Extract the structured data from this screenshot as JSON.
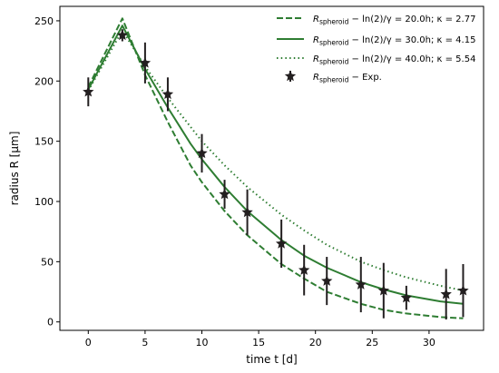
{
  "chart_data": {
    "type": "line",
    "xlabel": "time t [d]",
    "ylabel": "radius R [µm]",
    "xlim": [
      -2.5,
      34.8
    ],
    "ylim": [
      -7,
      262
    ],
    "xticks": [
      0,
      5,
      10,
      15,
      20,
      25,
      30
    ],
    "yticks": [
      0,
      50,
      100,
      150,
      200,
      250
    ],
    "grid": false,
    "legend_position": "top-right",
    "colors": {
      "model": "#2e7d32",
      "experiment": "#231f20"
    },
    "series": [
      {
        "label_math": "R",
        "label_sub": "spheroid",
        "label_rest": " − ln(2)/γ = 20.0h; κ = 2.77",
        "style": "dashed",
        "x": [
          0,
          3,
          5,
          7,
          9,
          10,
          12,
          14,
          17,
          19,
          21,
          24,
          26,
          28,
          31,
          33
        ],
        "y": [
          195,
          252,
          205,
          166,
          130,
          116,
          92,
          72,
          48,
          36,
          25,
          15,
          10,
          7,
          4,
          3
        ]
      },
      {
        "label_math": "R",
        "label_sub": "spheroid",
        "label_rest": " − ln(2)/γ = 30.0h; κ = 4.15",
        "style": "solid",
        "x": [
          0,
          3,
          5,
          7,
          9,
          10,
          12,
          14,
          17,
          19,
          21,
          24,
          26,
          28,
          31,
          33
        ],
        "y": [
          193,
          246,
          210,
          178,
          148,
          135,
          112,
          92,
          68,
          55,
          45,
          33,
          27,
          22,
          17,
          15
        ]
      },
      {
        "label_math": "R",
        "label_sub": "spheroid",
        "label_rest": " − ln(2)/γ = 40.0h; κ = 5.54",
        "style": "dotted",
        "x": [
          0,
          3,
          5,
          7,
          9,
          10,
          12,
          14,
          17,
          19,
          21,
          24,
          26,
          28,
          31,
          33
        ],
        "y": [
          192,
          242,
          212,
          186,
          162,
          150,
          130,
          112,
          89,
          76,
          64,
          50,
          43,
          37,
          30,
          26
        ]
      },
      {
        "label_math": "R",
        "label_sub": "spheroid",
        "label_rest": " − Exp.",
        "style": "markers",
        "x": [
          0,
          3,
          5,
          7,
          10,
          12,
          14,
          17,
          19,
          21,
          24,
          26,
          28,
          31.5,
          33
        ],
        "y": [
          191,
          238,
          215,
          189,
          140,
          106,
          91,
          65,
          43,
          34,
          31,
          26,
          20,
          23,
          26
        ],
        "err": [
          12,
          5,
          17,
          14,
          16,
          12,
          19,
          20,
          21,
          20,
          23,
          23,
          10,
          21,
          22
        ]
      }
    ]
  }
}
